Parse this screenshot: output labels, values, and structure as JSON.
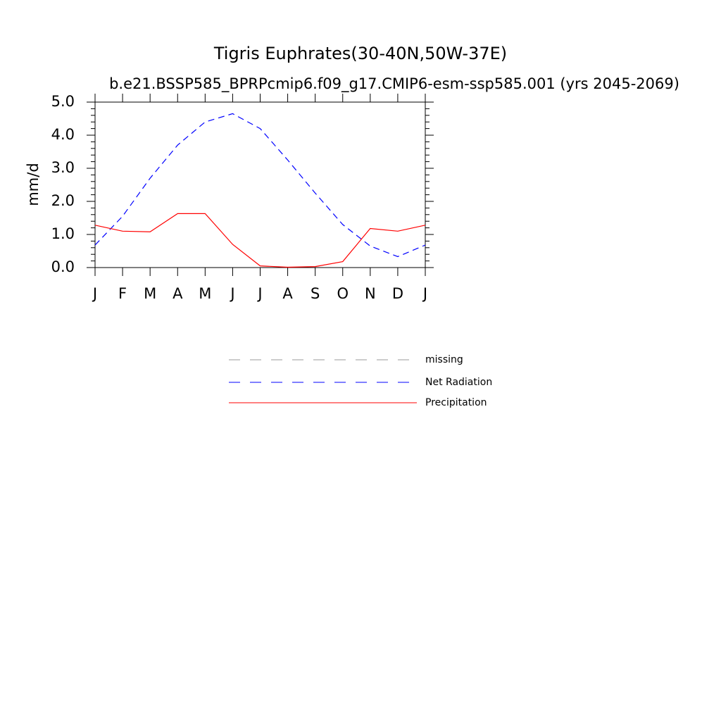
{
  "chart_data": {
    "type": "line",
    "title": "Tigris Euphrates(30-40N,50W-37E)",
    "subtitle": "b.e21.BSSP585_BPRPcmip6.f09_g17.CMIP6-esm-ssp585.001 (yrs 2045-2069)",
    "y_label": "mm/d",
    "categories": [
      "J",
      "F",
      "M",
      "A",
      "M",
      "J",
      "J",
      "A",
      "S",
      "O",
      "N",
      "D",
      "J"
    ],
    "series": [
      {
        "name": "missing",
        "color": "#999999",
        "dash": true,
        "values": [
          null,
          null,
          null,
          null,
          null,
          null,
          null,
          null,
          null,
          null,
          null,
          null,
          null
        ]
      },
      {
        "name": "Net Radiation",
        "color": "#0000ff",
        "dash": true,
        "values": [
          0.68,
          1.55,
          2.7,
          3.7,
          4.4,
          4.65,
          4.2,
          3.25,
          2.25,
          1.3,
          0.65,
          0.33,
          0.68
        ]
      },
      {
        "name": "Precipitation",
        "color": "#ff0000",
        "dash": false,
        "values": [
          1.28,
          1.1,
          1.08,
          1.63,
          1.63,
          0.7,
          0.05,
          0.01,
          0.03,
          0.18,
          1.18,
          1.1,
          1.28
        ]
      }
    ],
    "ylim": [
      0,
      5
    ],
    "yticks": [
      {
        "value": 0,
        "label": "0.0"
      },
      {
        "value": 1,
        "label": "1.0"
      },
      {
        "value": 2,
        "label": "2.0"
      },
      {
        "value": 3,
        "label": "3.0"
      },
      {
        "value": 4,
        "label": "4.0"
      },
      {
        "value": 5,
        "label": "5.0"
      }
    ],
    "yminorticks": [
      0.2,
      0.4,
      0.6,
      0.8,
      1.2,
      1.4,
      1.6,
      1.8,
      2.2,
      2.4,
      2.6,
      2.8,
      3.2,
      3.4,
      3.6,
      3.8,
      4.2,
      4.4,
      4.6,
      4.8
    ]
  }
}
